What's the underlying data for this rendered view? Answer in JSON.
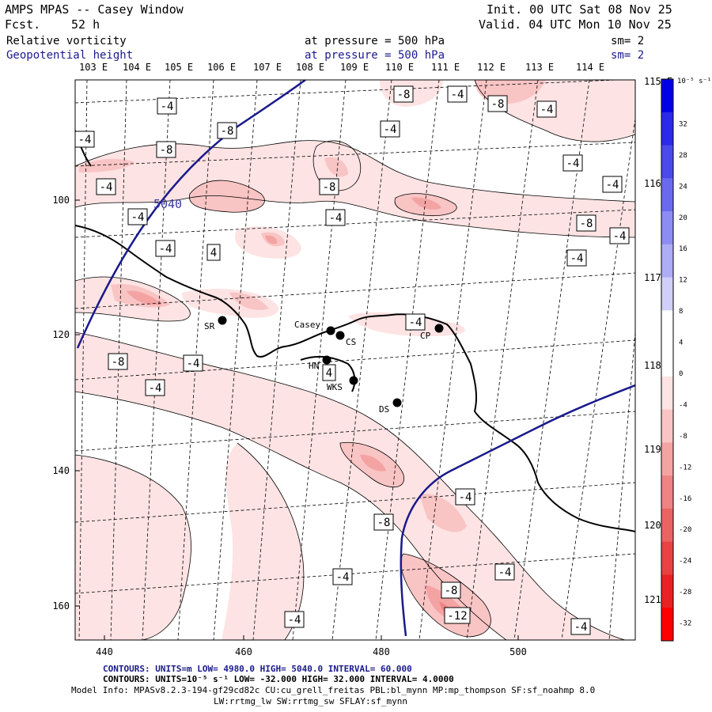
{
  "header": {
    "title": "AMPS MPAS -- Casey Window",
    "fcst_label": "Fcst.",
    "fcst_value": "52 h",
    "init": "Init. 00 UTC Sat 08 Nov 25",
    "valid": "Valid. 04 UTC Mon 10 Nov 25",
    "field1_name": "Relative vorticity",
    "field1_level": "at pressure =  500 hPa",
    "field1_sm": "sm= 2",
    "field2_name": "Geopotential height",
    "field2_level": "at pressure =  500 hPa",
    "field2_sm": "sm= 2"
  },
  "lon_labels_top": [
    "103 E",
    "104 E",
    "105 E",
    "106 E",
    "107 E",
    "108 E",
    "109 E",
    "110 E",
    "111 E",
    "112 E",
    "113 E",
    "114 E"
  ],
  "lat_labels_right": [
    "115 E",
    "116 E",
    "117 E",
    "118 E",
    "119 E",
    "120 E",
    "121 E"
  ],
  "x_axis_ticks": [
    "440",
    "460",
    "480",
    "500"
  ],
  "y_axis_ticks": [
    "100",
    "120",
    "140",
    "160"
  ],
  "stations": [
    {
      "name": "SR"
    },
    {
      "name": "Casey"
    },
    {
      "name": "CS"
    },
    {
      "name": "CP"
    },
    {
      "name": "HN"
    },
    {
      "name": "WKS"
    },
    {
      "name": "DS"
    }
  ],
  "contour_labels": [
    "-4",
    "-8",
    "-12",
    "4",
    "5040"
  ],
  "colorbar": {
    "units": "10⁻⁵ s⁻¹",
    "ticks": [
      "32",
      "28",
      "24",
      "20",
      "16",
      "12",
      "8",
      "4",
      "0",
      "-4",
      "-8",
      "-12",
      "-16",
      "-20",
      "-24",
      "-28",
      "-32"
    ],
    "colors": [
      "#0000e6",
      "#2a2ae8",
      "#4a4aea",
      "#6a6aee",
      "#8c8cf2",
      "#adadf5",
      "#cfcff9",
      "#ffffff",
      "#ffffff",
      "#fde3e3",
      "#f9c4c4",
      "#f4a3a3",
      "#ee8383",
      "#ea6363",
      "#e84242",
      "#e82222",
      "#ff0000"
    ]
  },
  "footer": {
    "line1": "CONTOURS:  UNITS=m  LOW=  4980.0          HIGH=  5040.0          INTERVAL=   60.000",
    "line2": "CONTOURS:  UNITS=10⁻⁵ s⁻¹  LOW= -32.000          HIGH=  32.000          INTERVAL=   4.0000",
    "line3": "Model Info: MPASv8.2.3-194-gf29cd82c CU:cu_grell_freitas PBL:bl_mynn MP:mp_thompson SF:sf_noahmp 8.0",
    "line4": "LW:rrtmg_lw SW:rrtmg_sw SFLAY:sf_mynn"
  }
}
